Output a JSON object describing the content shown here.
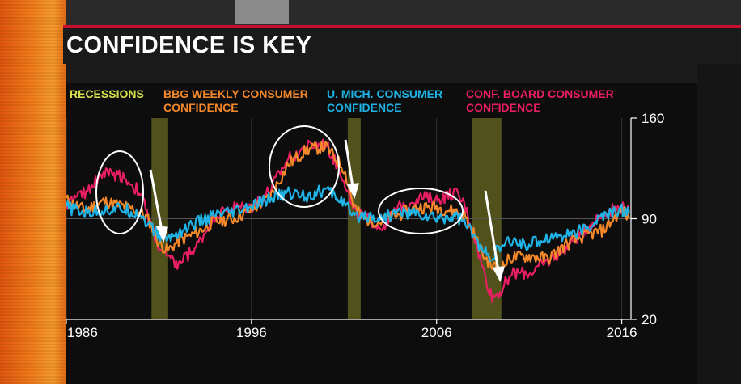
{
  "title": "CONFIDENCE IS KEY",
  "legend": [
    {
      "lines": [
        "RECESSIONS"
      ],
      "color": "#d6e04b"
    },
    {
      "lines": [
        "BBG WEEKLY CONSUMER",
        "CONFIDENCE"
      ],
      "color": "#f5882a"
    },
    {
      "lines": [
        "U. MICH. CONSUMER",
        "CONFIDENCE"
      ],
      "color": "#1fb3e6"
    },
    {
      "lines": [
        "CONF. BOARD CONSUMER",
        "CONFIDENCE"
      ],
      "color": "#e91e63"
    }
  ],
  "colors": {
    "recession": "#5e5e1e",
    "bbg": "#f5882a",
    "umich": "#1fb3e6",
    "confboard": "#e91e63",
    "annotation": "#ffffff"
  },
  "chart_data": {
    "type": "line",
    "xlim": [
      1986,
      2016.5
    ],
    "ylim": [
      20,
      160
    ],
    "x_ticks": [
      1986,
      1996,
      2006,
      2016
    ],
    "y_ticks": [
      20,
      90,
      160
    ],
    "recessions": [
      [
        1990.6,
        1991.5
      ],
      [
        2001.2,
        2001.9
      ],
      [
        2007.9,
        2009.5
      ]
    ],
    "series": [
      {
        "name": "BBG WEEKLY CONSUMER CONFIDENCE",
        "color": "#f5882a",
        "x": [
          1986,
          1987,
          1988,
          1989,
          1990,
          1990.5,
          1991,
          1991.5,
          1992,
          1993,
          1994,
          1995,
          1996,
          1997,
          1998,
          1999,
          2000,
          2001,
          2001.5,
          2002,
          2003,
          2004,
          2005,
          2006,
          2007,
          2007.5,
          2008,
          2008.5,
          2009,
          2009.5,
          2010,
          2011,
          2012,
          2013,
          2014,
          2015,
          2016,
          2016.4
        ],
        "y": [
          103,
          96,
          102,
          99,
          95,
          88,
          73,
          68,
          74,
          80,
          88,
          90,
          96,
          105,
          128,
          138,
          140,
          125,
          100,
          90,
          88,
          93,
          98,
          98,
          95,
          92,
          80,
          65,
          57,
          56,
          63,
          64,
          62,
          72,
          78,
          82,
          96,
          90
        ]
      },
      {
        "name": "U. MICH. CONSUMER CONFIDENCE",
        "color": "#1fb3e6",
        "x": [
          1986,
          1987,
          1988,
          1989,
          1990,
          1990.5,
          1991,
          1991.5,
          1992,
          1993,
          1994,
          1995,
          1996,
          1997,
          1998,
          1999,
          2000,
          2001,
          2001.5,
          2002,
          2003,
          2004,
          2005,
          2006,
          2007,
          2007.5,
          2008,
          2008.5,
          2009,
          2009.5,
          2010,
          2011,
          2012,
          2013,
          2014,
          2015,
          2016,
          2016.4
        ],
        "y": [
          98,
          94,
          96,
          97,
          93,
          85,
          78,
          76,
          80,
          87,
          92,
          94,
          98,
          104,
          108,
          106,
          110,
          102,
          90,
          93,
          90,
          95,
          93,
          90,
          92,
          88,
          78,
          67,
          64,
          70,
          74,
          72,
          77,
          79,
          82,
          92,
          96,
          94
        ]
      },
      {
        "name": "CONF. BOARD CONSUMER CONFIDENCE",
        "color": "#e91e63",
        "x": [
          1986,
          1987,
          1988,
          1989,
          1990,
          1990.5,
          1991,
          1991.5,
          1992,
          1993,
          1994,
          1995,
          1996,
          1997,
          1998,
          1999,
          2000,
          2001,
          2001.5,
          2002,
          2003,
          2004,
          2005,
          2006,
          2007,
          2007.5,
          2008,
          2008.5,
          2009,
          2009.5,
          2010,
          2011,
          2012,
          2013,
          2014,
          2015,
          2016,
          2016.4
        ],
        "y": [
          100,
          108,
          122,
          120,
          108,
          88,
          70,
          62,
          58,
          70,
          92,
          98,
          98,
          110,
          132,
          140,
          142,
          118,
          95,
          92,
          84,
          98,
          105,
          103,
          108,
          100,
          80,
          55,
          35,
          40,
          52,
          52,
          60,
          70,
          82,
          94,
          98,
          95
        ]
      }
    ]
  }
}
